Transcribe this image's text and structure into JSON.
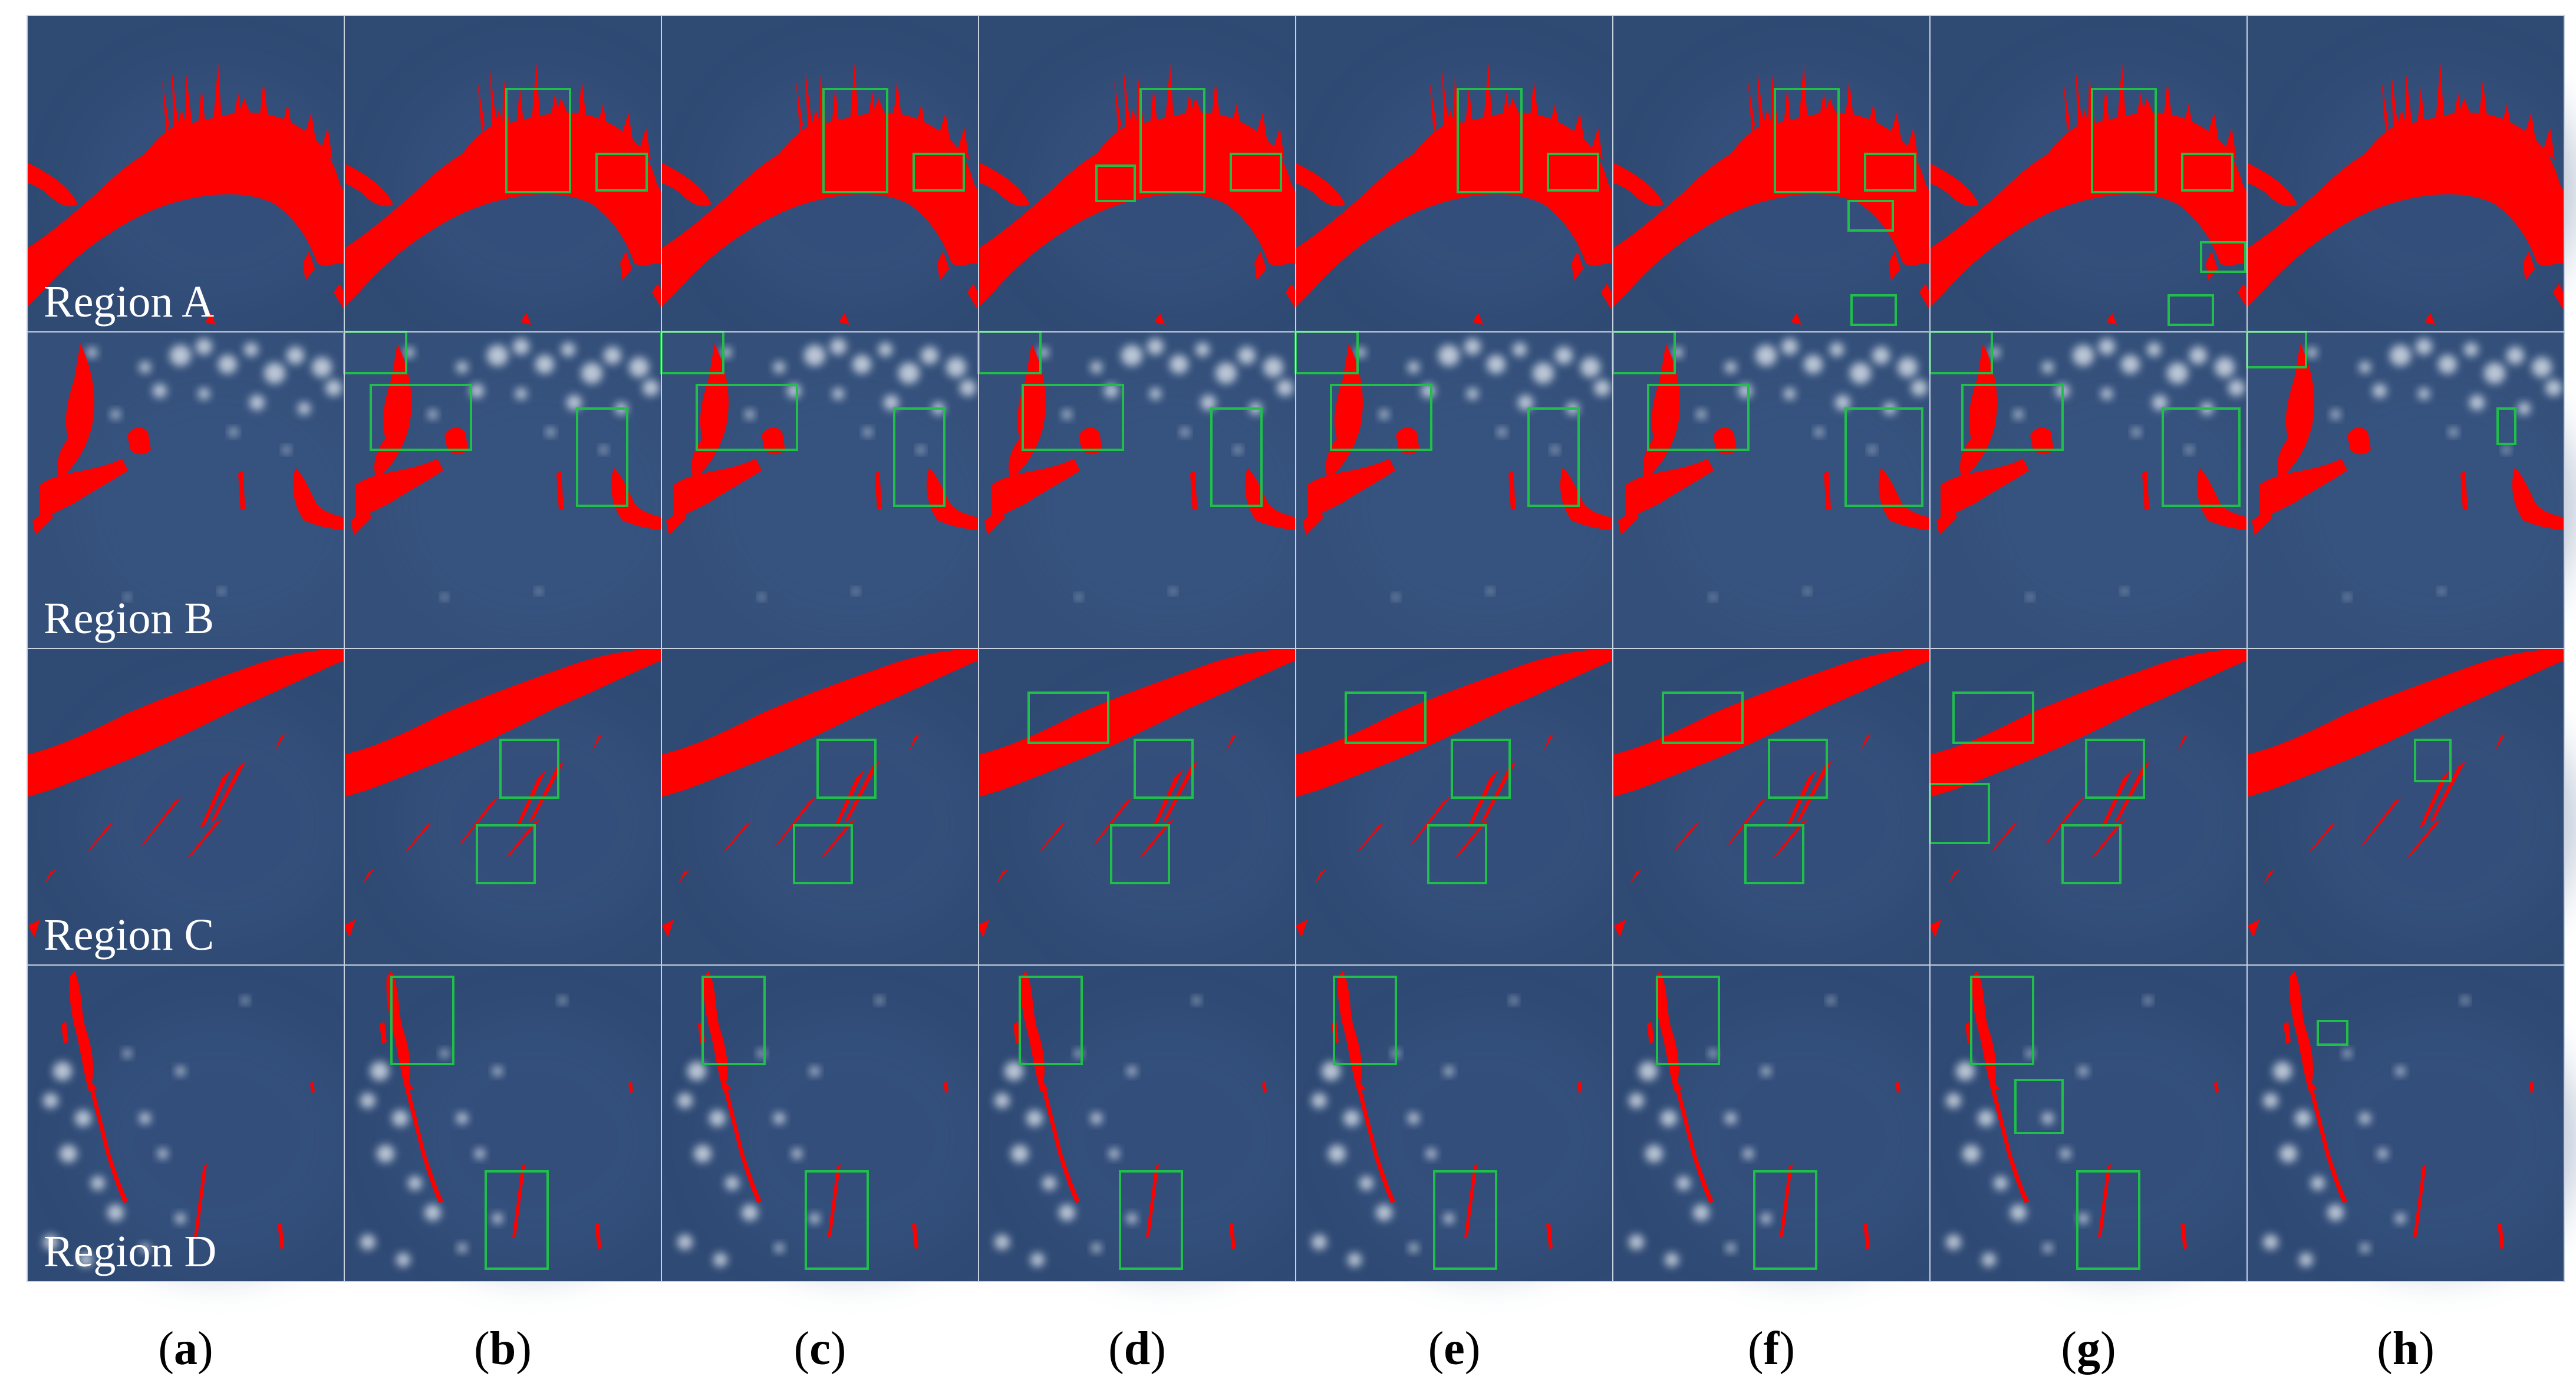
{
  "figure": {
    "rows": [
      {
        "id": "A",
        "label": "Region A",
        "scene": "lake"
      },
      {
        "id": "B",
        "label": "Region B",
        "scene": "cloudy"
      },
      {
        "id": "C",
        "label": "Region C",
        "scene": "diagonal"
      },
      {
        "id": "D",
        "label": "Region D",
        "scene": "streaks"
      }
    ],
    "columns": [
      {
        "id": "a",
        "letter": "a"
      },
      {
        "id": "b",
        "letter": "b"
      },
      {
        "id": "c",
        "letter": "c"
      },
      {
        "id": "d",
        "letter": "d"
      },
      {
        "id": "e",
        "letter": "e"
      },
      {
        "id": "f",
        "letter": "f"
      },
      {
        "id": "g",
        "letter": "g"
      },
      {
        "id": "h",
        "letter": "h"
      }
    ],
    "colors": {
      "background_blue": "#2f4a73",
      "segmentation_red": "#ff0000",
      "highlight_box_green": "#1fbf4a",
      "grid_line": "#c8d2e0",
      "cloud_white": "#e8eef5"
    }
  }
}
